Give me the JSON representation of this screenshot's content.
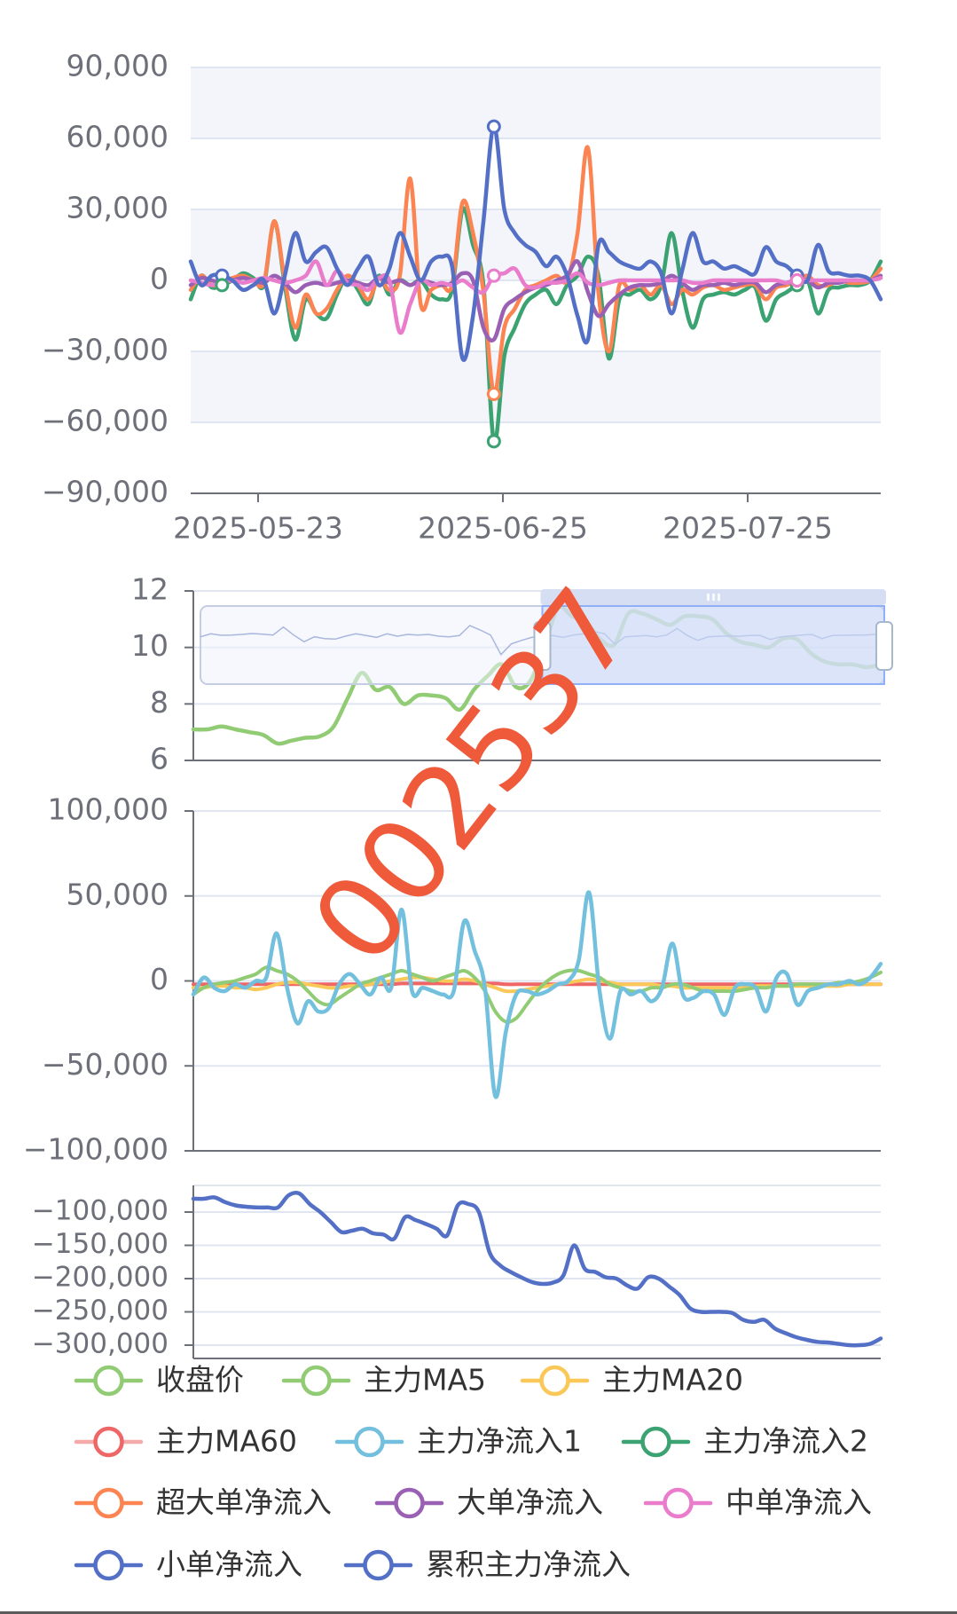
{
  "watermark": "002537",
  "colors": {
    "close": "#91cc75",
    "ma5": "#91cc75",
    "ma20": "#fac858",
    "ma60": "#ee6666",
    "net1": "#73c0de",
    "net2": "#3ba272",
    "super": "#fc8452",
    "big": "#9a60b4",
    "mid": "#ea7ccc",
    "small": "#5470c6",
    "cum": "#5470c6",
    "panelBg": "#f3f5fb",
    "zoomFill": "#c9d7f5"
  },
  "chart_data": [
    {
      "type": "line",
      "x_ticks": [
        "2025-05-23",
        "2025-06-25",
        "2025-07-25"
      ],
      "ylim": [
        -90000,
        90000
      ],
      "y_ticks": [
        "90,000",
        "60,000",
        "30,000",
        "0",
        "−30,000",
        "−60,000",
        "−90,000"
      ],
      "series": [
        {
          "name": "主力净流入2",
          "key": "net2",
          "values": [
            -8000,
            2000,
            -3000,
            -2000,
            0,
            3000,
            1000,
            -2000,
            25000,
            -2000,
            -25000,
            -8000,
            -14000,
            -16000,
            -6000,
            2000,
            -4000,
            -10000,
            2000,
            -6000,
            0,
            -2000,
            0,
            -6000,
            -8000,
            -4000,
            30000,
            15000,
            -2000,
            -68000,
            -32000,
            -20000,
            -10000,
            -6000,
            -4000,
            -10000,
            -2000,
            2000,
            10000,
            2000,
            -33000,
            -8000,
            -6000,
            -4000,
            -8000,
            -2000,
            20000,
            -4000,
            -20000,
            -8000,
            -6000,
            -5000,
            -6000,
            -4000,
            -3000,
            -17000,
            -8000,
            -5000,
            -2000,
            0,
            -14000,
            -4000,
            -3000,
            -2000,
            -2000,
            0,
            8000
          ]
        },
        {
          "name": "超大单净流入",
          "key": "super",
          "values": [
            -4000,
            2000,
            -2000,
            -1000,
            1000,
            2000,
            0,
            -1000,
            25000,
            0,
            -20000,
            -6000,
            -14000,
            -12000,
            -4000,
            2000,
            -2000,
            -8000,
            1000,
            -4000,
            2000,
            43000,
            -10000,
            -4000,
            -2000,
            -2000,
            33000,
            20000,
            -5000,
            -48000,
            -20000,
            -12000,
            -4000,
            -2000,
            0,
            2000,
            0,
            20000,
            56000,
            -5000,
            -30000,
            -2000,
            -4000,
            -2000,
            -6000,
            -2000,
            -10000,
            -4000,
            -6000,
            -3000,
            -2000,
            -4000,
            -3000,
            -2000,
            -2000,
            -8000,
            -3000,
            -2000,
            0,
            2000,
            -2000,
            -2000,
            0,
            -1000,
            -1000,
            0,
            5000
          ]
        },
        {
          "name": "大单净流入",
          "key": "big",
          "values": [
            -2000,
            1000,
            0,
            -1000,
            0,
            1000,
            0,
            -1000,
            2000,
            -1000,
            -5000,
            -2000,
            -1000,
            -2000,
            -1000,
            0,
            -1000,
            -2000,
            1000,
            -1000,
            0,
            -2000,
            0,
            -1000,
            -2000,
            -1000,
            3000,
            0,
            -20000,
            -25000,
            -12000,
            -8000,
            -5000,
            -3000,
            -2000,
            0,
            2000,
            8000,
            -5000,
            -15000,
            -10000,
            -6000,
            -3000,
            -2000,
            -2000,
            -1000,
            2000,
            -1000,
            -4000,
            -2000,
            -2000,
            -1000,
            -2000,
            -1000,
            -1000,
            -5000,
            -2000,
            -1000,
            0,
            0,
            -3000,
            -1000,
            -1000,
            0,
            0,
            0,
            2000
          ]
        },
        {
          "name": "中单净流入",
          "key": "mid",
          "values": [
            0,
            -1000,
            -2000,
            -1000,
            0,
            -1000,
            0,
            1000,
            0,
            -1000,
            0,
            2000,
            8000,
            -2000,
            4000,
            -1000,
            -2000,
            -4000,
            1000,
            0,
            -22000,
            -10000,
            0,
            -2000,
            -1000,
            -2000,
            0,
            -3000,
            -5000,
            2000,
            3000,
            5000,
            -2000,
            -3000,
            -1000,
            -1000,
            0,
            3000,
            -1000,
            -2000,
            -1000,
            0,
            0,
            0,
            0,
            0,
            0,
            0,
            -1000,
            -1000,
            0,
            0,
            0,
            0,
            0,
            0,
            0,
            -1000,
            0,
            0,
            0,
            0,
            0,
            0,
            0,
            0,
            1000
          ]
        },
        {
          "name": "小单净流入",
          "key": "small",
          "values": [
            8000,
            -2000,
            2000,
            2000,
            0,
            -4000,
            -2000,
            0,
            -14000,
            2000,
            20000,
            8000,
            12000,
            14000,
            5000,
            -2000,
            5000,
            10000,
            -2000,
            5000,
            20000,
            10000,
            0,
            8000,
            10000,
            6000,
            -33000,
            -15000,
            25000,
            65000,
            30000,
            20000,
            15000,
            12000,
            6000,
            10000,
            2000,
            -15000,
            -25000,
            15000,
            12000,
            8000,
            6000,
            5000,
            8000,
            3000,
            -14000,
            4000,
            20000,
            8000,
            8000,
            5000,
            6000,
            4000,
            3000,
            14000,
            8000,
            6000,
            2000,
            0,
            15000,
            4000,
            3000,
            2000,
            2000,
            0,
            -8000
          ]
        }
      ]
    },
    {
      "type": "line",
      "ylim": [
        6,
        12
      ],
      "y_ticks": [
        "12",
        "10",
        "8",
        "6"
      ],
      "series": [
        {
          "name": "收盘价",
          "key": "close",
          "values": [
            7.1,
            7.1,
            7.2,
            7.1,
            7.0,
            6.9,
            6.6,
            6.7,
            6.8,
            6.85,
            7.2,
            8.2,
            9.1,
            8.5,
            8.6,
            8.0,
            8.3,
            8.3,
            8.2,
            7.8,
            8.5,
            9.0,
            9.4,
            8.6,
            8.8,
            10.0,
            11.4,
            11.1,
            10.9,
            10.3,
            10.1,
            11.2,
            11.2,
            11.0,
            10.8,
            11.1,
            11.1,
            11.0,
            10.5,
            10.2,
            10.1,
            10.0,
            10.3,
            10.3,
            9.8,
            9.5,
            9.4,
            9.4,
            9.3,
            9.4
          ]
        }
      ],
      "zoom_range": [
        0.5,
        1.0
      ]
    },
    {
      "type": "line",
      "ylim": [
        -100000,
        100000
      ],
      "y_ticks": [
        "100,000",
        "50,000",
        "0",
        "−50,000",
        "−100,000"
      ],
      "series": [
        {
          "name": "主力MA5",
          "key": "ma5",
          "values": [
            -8000,
            -4000,
            -2000,
            -1000,
            0,
            2000,
            4000,
            8000,
            6000,
            4000,
            0,
            -6000,
            -12000,
            -14000,
            -10000,
            -6000,
            -2000,
            0,
            2000,
            4000,
            6000,
            4000,
            2000,
            0,
            2000,
            4000,
            6000,
            2000,
            -6000,
            -18000,
            -24000,
            -22000,
            -14000,
            -6000,
            0,
            4000,
            6000,
            6000,
            4000,
            2000,
            -2000,
            -4000,
            -6000,
            -6000,
            -4000,
            -4000,
            -2000,
            -2000,
            -4000,
            -6000,
            -6000,
            -6000,
            -6000,
            -5000,
            -4000,
            -4000,
            -3000,
            -3000,
            -2000,
            -2000,
            -2000,
            -2000,
            -1000,
            -1000,
            0,
            2000,
            5000
          ]
        },
        {
          "name": "主力MA20",
          "key": "ma20",
          "values": [
            -4000,
            -4000,
            -3000,
            -3000,
            -4000,
            -4000,
            -5000,
            -4000,
            -2000,
            -1000,
            -1000,
            -2000,
            -3000,
            -4000,
            -4000,
            -3000,
            -3000,
            -2000,
            -1000,
            0,
            1000,
            2000,
            2000,
            1000,
            0,
            0,
            1000,
            0,
            -2000,
            -4000,
            -6000,
            -6000,
            -5000,
            -4000,
            -3000,
            -2000,
            -1000,
            0,
            1000,
            0,
            -1000,
            -2000,
            -2000,
            -2000,
            -2000,
            -3000,
            -3000,
            -4000,
            -4000,
            -4000,
            -4000,
            -4000,
            -4000,
            -4000,
            -3000,
            -3000,
            -3000,
            -3000,
            -3000,
            -3000,
            -3000,
            -3000,
            -3000,
            -2000,
            -2000,
            -2000,
            -2000
          ]
        },
        {
          "name": "主力MA60",
          "key": "ma60",
          "values": [
            -2000,
            -2000,
            -2000,
            -2000,
            -2000,
            -2000,
            -2000,
            -2000,
            -2000,
            -2000,
            -2000,
            -2000,
            -2000,
            -2000,
            -2000,
            -2000,
            -2000,
            -2000,
            -2000,
            -2000,
            -1500,
            -1500,
            -1500,
            -1500,
            -1500,
            -1500,
            -1500,
            -1500,
            -1500,
            -1500,
            -2000,
            -2000,
            -2000,
            -2000,
            -2000,
            -2000,
            -2000,
            -2000,
            -2000,
            -2000,
            -2000,
            -2000,
            -2000,
            -2000,
            -2000,
            -2000,
            -2000,
            -2000,
            -2000,
            -2000,
            -2000,
            -2000,
            -2000,
            -2000,
            -2000,
            -2000,
            -2000,
            -2000,
            -2000,
            -2000,
            -2000,
            -2000,
            -2000,
            -2000,
            -2000,
            -2000,
            -2000
          ]
        },
        {
          "name": "主力净流入1",
          "key": "net1",
          "values": [
            -8000,
            2000,
            -4000,
            -6000,
            -2000,
            -4000,
            0,
            2000,
            28000,
            -4000,
            -25000,
            -12000,
            -18000,
            -16000,
            -2000,
            4000,
            -2000,
            -8000,
            2000,
            -4000,
            42000,
            -6000,
            -4000,
            -6000,
            -8000,
            -6000,
            35000,
            18000,
            -4000,
            -68000,
            -30000,
            -8000,
            -6000,
            -8000,
            -6000,
            -2000,
            0,
            12000,
            52000,
            -6000,
            -34000,
            -6000,
            -8000,
            -6000,
            -12000,
            -4000,
            22000,
            -8000,
            -10000,
            -6000,
            -8000,
            -20000,
            -4000,
            -2000,
            -4000,
            -18000,
            2000,
            4000,
            -14000,
            -6000,
            -4000,
            -2000,
            -2000,
            0,
            -2000,
            2000,
            10000
          ]
        }
      ]
    },
    {
      "type": "line",
      "ylim": [
        -320000,
        -60000
      ],
      "y_ticks": [
        "−100,000",
        "−150,000",
        "−200,000",
        "−250,000",
        "−300,000"
      ],
      "series": [
        {
          "name": "累积主力净流入",
          "key": "cum",
          "values": [
            -80000,
            -80000,
            -78000,
            -85000,
            -90000,
            -92000,
            -93000,
            -93000,
            -93000,
            -75000,
            -72000,
            -88000,
            -100000,
            -115000,
            -130000,
            -128000,
            -125000,
            -132000,
            -134000,
            -140000,
            -108000,
            -112000,
            -118000,
            -125000,
            -135000,
            -90000,
            -88000,
            -100000,
            -160000,
            -180000,
            -190000,
            -198000,
            -205000,
            -208000,
            -206000,
            -195000,
            -150000,
            -185000,
            -190000,
            -198000,
            -200000,
            -210000,
            -215000,
            -198000,
            -200000,
            -212000,
            -225000,
            -245000,
            -250000,
            -250000,
            -250000,
            -252000,
            -262000,
            -265000,
            -262000,
            -275000,
            -282000,
            -288000,
            -292000,
            -295000,
            -296000,
            -298000,
            -300000,
            -300000,
            -298000,
            -290000
          ]
        }
      ]
    }
  ],
  "legend": [
    {
      "name": "收盘价",
      "key": "close"
    },
    {
      "name": "主力MA5",
      "key": "ma5"
    },
    {
      "name": "主力MA20",
      "key": "ma20"
    },
    {
      "name": "主力MA60",
      "key": "ma60"
    },
    {
      "name": "主力净流入1",
      "key": "net1"
    },
    {
      "name": "主力净流入2",
      "key": "net2"
    },
    {
      "name": "超大单净流入",
      "key": "super"
    },
    {
      "name": "大单净流入",
      "key": "big"
    },
    {
      "name": "中单净流入",
      "key": "mid"
    },
    {
      "name": "小单净流入",
      "key": "small"
    },
    {
      "name": "累积主力净流入",
      "key": "cum"
    }
  ]
}
